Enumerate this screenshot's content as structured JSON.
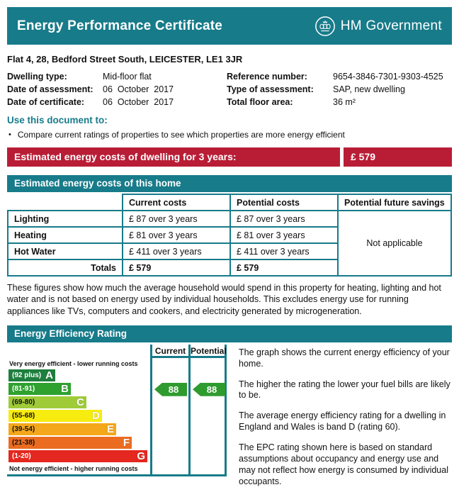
{
  "colors": {
    "teal": "#177b8a",
    "red_banner": "#b91d36",
    "arrow_green": "#2e9b2e"
  },
  "header": {
    "title": "Energy Performance Certificate",
    "gov_logo": "HM Government"
  },
  "address": "Flat 4, 28, Bedford Street South, LEICESTER, LE1 3JR",
  "property_details": {
    "rows": [
      {
        "left_label": "Dwelling type:",
        "left_value": "Mid-floor flat",
        "right_label": "Reference number:",
        "right_value": "9654-3846-7301-9303-4525"
      },
      {
        "left_label": "Date of assessment:",
        "left_value": "06  October  2017",
        "right_label": "Type of assessment:",
        "right_value": "SAP, new dwelling"
      },
      {
        "left_label": "Date of certificate:",
        "left_value": "06  October  2017",
        "right_label": "Total floor area:",
        "right_value": "36 m²"
      }
    ]
  },
  "use_document": {
    "heading": "Use this document to:",
    "bullet": "Compare current ratings of properties to see which properties are more energy efficient",
    "bullet_marker": "•"
  },
  "cost_banner": {
    "label": "Estimated energy costs of dwelling for 3 years:",
    "value": "£ 579"
  },
  "costs_section": {
    "heading": "Estimated energy costs of this home",
    "table": {
      "headers": [
        "Current costs",
        "Potential costs",
        "Potential future savings"
      ],
      "rows": [
        {
          "label": "Lighting",
          "current": "£ 87 over 3 years",
          "potential": "£ 87 over 3 years"
        },
        {
          "label": "Heating",
          "current": "£ 81 over 3 years",
          "potential": "£ 81 over 3 years"
        },
        {
          "label": "Hot Water",
          "current": "£ 411 over 3 years",
          "potential": "£ 411 over 3 years"
        }
      ],
      "totals": {
        "label": "Totals",
        "current": "£ 579",
        "potential": "£ 579"
      },
      "savings_note": "Not applicable"
    },
    "footnote": "These figures show how much the average household would spend in this property for heating, lighting and hot water and is not based on energy used by individual households. This excludes energy use for running appliances like TVs, computers and cookers, and electricity generated by microgeneration."
  },
  "rating_section": {
    "heading": "Energy Efficiency Rating",
    "paragraphs": [
      "The graph shows the current energy efficiency of your home.",
      "The higher the rating the lower your fuel bills are likely to be.",
      "The average energy efficiency rating for a dwelling in England and Wales is band D (rating 60).",
      "The EPC rating shown here is based on standard assumptions about occupancy and energy use and may not reflect how energy is consumed by individual occupants."
    ]
  },
  "chart_data": {
    "type": "bar",
    "title": "Energy Efficiency Rating",
    "top_label": "Very energy efficient - lower running costs",
    "bottom_label": "Not energy efficient - higher running costs",
    "columns": [
      "Current",
      "Potential"
    ],
    "bands": [
      {
        "letter": "A",
        "range": "(92 plus)",
        "color": "#1e7e3e",
        "text_color": "#ffffff",
        "width_pct": 33
      },
      {
        "letter": "B",
        "range": "(81-91)",
        "color": "#2ea12e",
        "text_color": "#ffffff",
        "width_pct": 44
      },
      {
        "letter": "C",
        "range": "(69-80)",
        "color": "#9fcb38",
        "text_color": "#111111",
        "width_pct": 55
      },
      {
        "letter": "D",
        "range": "(55-68)",
        "color": "#f7ec0f",
        "text_color": "#111111",
        "width_pct": 66
      },
      {
        "letter": "E",
        "range": "(39-54)",
        "color": "#f5a71b",
        "text_color": "#111111",
        "width_pct": 76
      },
      {
        "letter": "F",
        "range": "(21-38)",
        "color": "#eb6c20",
        "text_color": "#111111",
        "width_pct": 87
      },
      {
        "letter": "G",
        "range": "(1-20)",
        "color": "#e4271f",
        "text_color": "#ffffff",
        "width_pct": 98
      }
    ],
    "current": {
      "value": 88,
      "band": "B"
    },
    "potential": {
      "value": 88,
      "band": "B"
    },
    "current_band_index": 1
  }
}
